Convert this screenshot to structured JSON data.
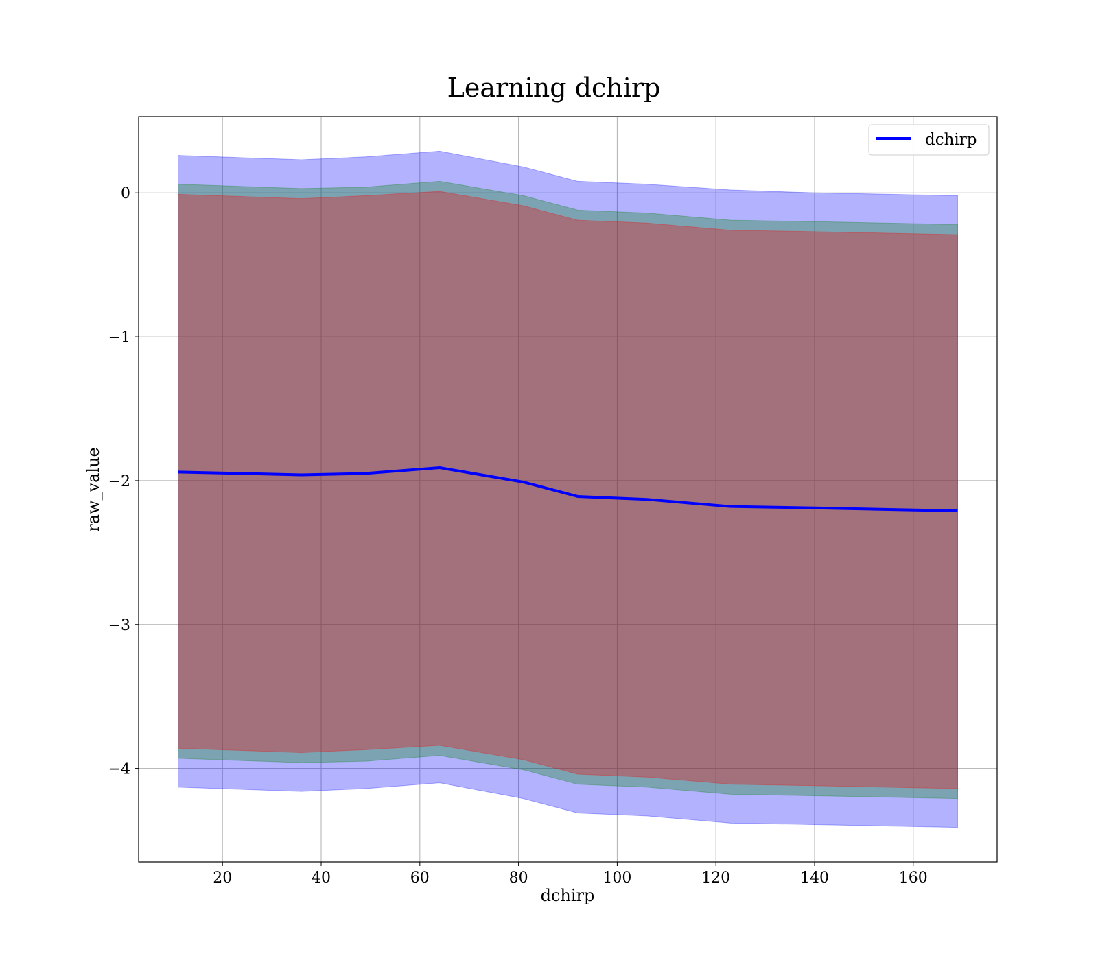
{
  "chart_data": {
    "type": "area",
    "title": "Learning dchirp",
    "xlabel": "dchirp",
    "ylabel": "raw_value",
    "xlim": [
      3,
      177
    ],
    "ylim": [
      -4.65,
      0.53
    ],
    "xticks": [
      20,
      40,
      60,
      80,
      100,
      120,
      140,
      160
    ],
    "yticks": [
      0,
      -1,
      -2,
      -3,
      -4
    ],
    "ytick_labels": [
      "0",
      "−1",
      "−2",
      "−3",
      "−4"
    ],
    "grid": true,
    "legend": {
      "placement": "top-right",
      "entries": [
        "dchirp"
      ]
    },
    "x": [
      11,
      36,
      49,
      64,
      81,
      92,
      106,
      123,
      140,
      169
    ],
    "series": [
      {
        "name": "dchirp",
        "kind": "line",
        "color": "#0000ff",
        "values": [
          -1.94,
          -1.96,
          -1.95,
          -1.91,
          -2.01,
          -2.11,
          -2.13,
          -2.18,
          -2.19,
          -2.21
        ]
      }
    ],
    "bands": [
      {
        "role": "outer",
        "color": "#0000ff",
        "opacity": 0.3,
        "upper": [
          0.26,
          0.23,
          0.25,
          0.29,
          0.18,
          0.08,
          0.06,
          0.02,
          0.0,
          -0.02
        ],
        "lower": [
          -4.13,
          -4.16,
          -4.14,
          -4.1,
          -4.21,
          -4.31,
          -4.33,
          -4.38,
          -4.39,
          -4.41
        ]
      },
      {
        "role": "middle",
        "color": "#008000",
        "opacity": 0.3,
        "upper": [
          0.06,
          0.03,
          0.04,
          0.08,
          -0.02,
          -0.12,
          -0.14,
          -0.19,
          -0.2,
          -0.22
        ],
        "lower": [
          -3.93,
          -3.96,
          -3.95,
          -3.91,
          -4.01,
          -4.11,
          -4.13,
          -4.18,
          -4.19,
          -4.21
        ]
      },
      {
        "role": "inner",
        "color": "#ff0000",
        "opacity": 0.3,
        "upper": [
          -0.01,
          -0.04,
          -0.02,
          0.01,
          -0.09,
          -0.19,
          -0.21,
          -0.26,
          -0.27,
          -0.29
        ],
        "lower": [
          -3.86,
          -3.89,
          -3.87,
          -3.84,
          -3.94,
          -4.04,
          -4.06,
          -4.11,
          -4.12,
          -4.14
        ]
      }
    ]
  }
}
